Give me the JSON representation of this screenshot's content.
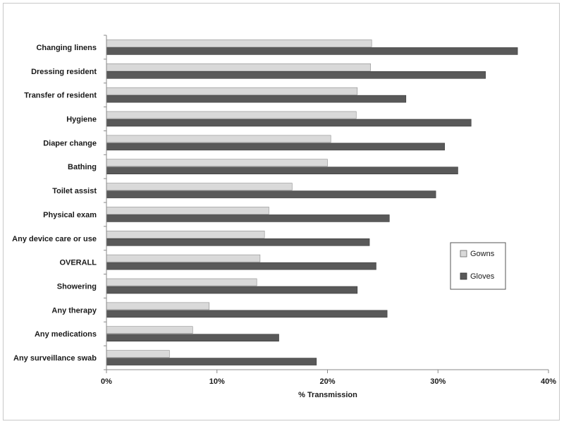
{
  "chart_data": {
    "type": "bar",
    "orientation": "horizontal",
    "categories": [
      "Changing linens",
      "Dressing resident",
      "Transfer of resident",
      "Hygiene",
      "Diaper change",
      "Bathing",
      "Toilet assist",
      "Physical exam",
      "Any device care or use",
      "OVERALL",
      "Showering",
      "Any therapy",
      "Any medications",
      "Any surveillance swab"
    ],
    "series": [
      {
        "name": "Gowns",
        "color": "#d9d9d9",
        "values": [
          24.0,
          23.9,
          22.7,
          22.6,
          20.3,
          20.0,
          16.8,
          14.7,
          14.3,
          13.9,
          13.6,
          9.3,
          7.8,
          5.7
        ]
      },
      {
        "name": "Gloves",
        "color": "#595959",
        "values": [
          37.2,
          34.3,
          27.1,
          33.0,
          30.6,
          31.8,
          29.8,
          25.6,
          23.8,
          24.4,
          22.7,
          25.4,
          15.6,
          19.0
        ]
      }
    ],
    "xlabel": "% Transmission",
    "ylabel": "",
    "xlim": [
      0,
      40
    ],
    "xticks": [
      "0%",
      "10%",
      "20%",
      "30%",
      "40%"
    ],
    "legend_position": "right",
    "grid": false
  }
}
